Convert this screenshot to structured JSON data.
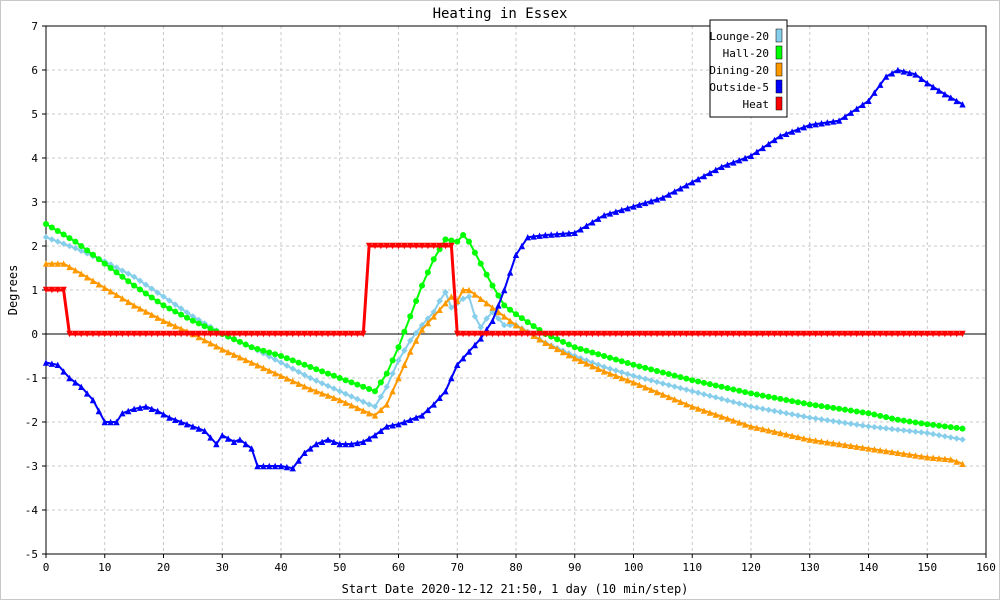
{
  "chart_data": {
    "type": "line",
    "title": "Heating in Essex",
    "xlabel": "Start Date 2020-12-12 21:50, 1 day (10 min/step)",
    "ylabel": "Degrees",
    "xlim": [
      0,
      160
    ],
    "ylim": [
      -5,
      7
    ],
    "x_ticks": [
      0,
      10,
      20,
      30,
      40,
      50,
      60,
      70,
      80,
      90,
      100,
      110,
      120,
      130,
      140,
      150,
      160
    ],
    "y_ticks": [
      -5,
      -4,
      -3,
      -2,
      -1,
      0,
      1,
      2,
      3,
      4,
      5,
      6,
      7
    ],
    "grid": true,
    "legend_position": "top-right",
    "series": [
      {
        "name": "Lounge-20",
        "color": "#87ceeb",
        "marker": "diamond",
        "points": [
          [
            0,
            2.2
          ],
          [
            5,
            1.95
          ],
          [
            10,
            1.65
          ],
          [
            15,
            1.3
          ],
          [
            20,
            0.85
          ],
          [
            25,
            0.4
          ],
          [
            30,
            0.0
          ],
          [
            35,
            -0.3
          ],
          [
            40,
            -0.65
          ],
          [
            45,
            -1.0
          ],
          [
            50,
            -1.3
          ],
          [
            55,
            -1.6
          ],
          [
            56,
            -1.65
          ],
          [
            58,
            -1.2
          ],
          [
            60,
            -0.6
          ],
          [
            62,
            -0.15
          ],
          [
            64,
            0.2
          ],
          [
            66,
            0.5
          ],
          [
            67,
            0.75
          ],
          [
            68,
            0.95
          ],
          [
            69,
            0.6
          ],
          [
            70,
            0.7
          ],
          [
            71,
            0.8
          ],
          [
            72,
            0.85
          ],
          [
            73,
            0.4
          ],
          [
            74,
            0.15
          ],
          [
            75,
            0.35
          ],
          [
            76,
            0.5
          ],
          [
            77,
            0.35
          ],
          [
            78,
            0.2
          ],
          [
            80,
            0.2
          ],
          [
            82,
            0.05
          ],
          [
            85,
            -0.2
          ],
          [
            90,
            -0.5
          ],
          [
            95,
            -0.75
          ],
          [
            100,
            -0.95
          ],
          [
            110,
            -1.3
          ],
          [
            120,
            -1.65
          ],
          [
            130,
            -1.9
          ],
          [
            140,
            -2.1
          ],
          [
            150,
            -2.25
          ],
          [
            156,
            -2.4
          ]
        ]
      },
      {
        "name": "Hall-20",
        "color": "#00ff00",
        "marker": "circle",
        "points": [
          [
            0,
            2.5
          ],
          [
            5,
            2.1
          ],
          [
            10,
            1.6
          ],
          [
            15,
            1.1
          ],
          [
            20,
            0.65
          ],
          [
            25,
            0.3
          ],
          [
            30,
            0.0
          ],
          [
            35,
            -0.3
          ],
          [
            40,
            -0.5
          ],
          [
            45,
            -0.75
          ],
          [
            50,
            -1.0
          ],
          [
            55,
            -1.25
          ],
          [
            56,
            -1.3
          ],
          [
            58,
            -0.9
          ],
          [
            60,
            -0.3
          ],
          [
            62,
            0.4
          ],
          [
            64,
            1.1
          ],
          [
            66,
            1.7
          ],
          [
            68,
            2.15
          ],
          [
            70,
            2.1
          ],
          [
            71,
            2.25
          ],
          [
            72,
            2.1
          ],
          [
            74,
            1.6
          ],
          [
            76,
            1.1
          ],
          [
            78,
            0.65
          ],
          [
            80,
            0.45
          ],
          [
            85,
            0.0
          ],
          [
            90,
            -0.3
          ],
          [
            95,
            -0.5
          ],
          [
            100,
            -0.7
          ],
          [
            110,
            -1.05
          ],
          [
            120,
            -1.35
          ],
          [
            130,
            -1.6
          ],
          [
            140,
            -1.8
          ],
          [
            145,
            -1.95
          ],
          [
            150,
            -2.05
          ],
          [
            156,
            -2.15
          ]
        ]
      },
      {
        "name": "Dining-20",
        "color": "#ff9900",
        "marker": "triangle",
        "points": [
          [
            0,
            1.6
          ],
          [
            3,
            1.6
          ],
          [
            5,
            1.45
          ],
          [
            10,
            1.05
          ],
          [
            15,
            0.65
          ],
          [
            20,
            0.3
          ],
          [
            25,
            0.0
          ],
          [
            30,
            -0.35
          ],
          [
            35,
            -0.65
          ],
          [
            40,
            -0.95
          ],
          [
            45,
            -1.25
          ],
          [
            50,
            -1.5
          ],
          [
            55,
            -1.8
          ],
          [
            56,
            -1.85
          ],
          [
            58,
            -1.6
          ],
          [
            60,
            -1.0
          ],
          [
            62,
            -0.4
          ],
          [
            64,
            0.1
          ],
          [
            66,
            0.4
          ],
          [
            68,
            0.7
          ],
          [
            69,
            0.85
          ],
          [
            70,
            0.75
          ],
          [
            71,
            1.0
          ],
          [
            72,
            1.0
          ],
          [
            74,
            0.8
          ],
          [
            76,
            0.6
          ],
          [
            78,
            0.4
          ],
          [
            80,
            0.2
          ],
          [
            85,
            -0.2
          ],
          [
            90,
            -0.55
          ],
          [
            95,
            -0.85
          ],
          [
            100,
            -1.1
          ],
          [
            110,
            -1.65
          ],
          [
            120,
            -2.1
          ],
          [
            130,
            -2.4
          ],
          [
            140,
            -2.6
          ],
          [
            150,
            -2.8
          ],
          [
            154,
            -2.85
          ],
          [
            156,
            -2.95
          ]
        ]
      },
      {
        "name": "Outside-5",
        "color": "#0000ff",
        "marker": "triangle",
        "points": [
          [
            0,
            -0.65
          ],
          [
            2,
            -0.7
          ],
          [
            4,
            -1.0
          ],
          [
            6,
            -1.2
          ],
          [
            8,
            -1.5
          ],
          [
            10,
            -2.0
          ],
          [
            12,
            -2.0
          ],
          [
            13,
            -1.8
          ],
          [
            15,
            -1.7
          ],
          [
            17,
            -1.65
          ],
          [
            19,
            -1.75
          ],
          [
            21,
            -1.9
          ],
          [
            23,
            -2.0
          ],
          [
            25,
            -2.1
          ],
          [
            27,
            -2.2
          ],
          [
            29,
            -2.5
          ],
          [
            30,
            -2.3
          ],
          [
            32,
            -2.45
          ],
          [
            33,
            -2.4
          ],
          [
            35,
            -2.6
          ],
          [
            36,
            -3.0
          ],
          [
            40,
            -3.0
          ],
          [
            42,
            -3.05
          ],
          [
            44,
            -2.7
          ],
          [
            46,
            -2.5
          ],
          [
            48,
            -2.4
          ],
          [
            50,
            -2.5
          ],
          [
            52,
            -2.5
          ],
          [
            54,
            -2.45
          ],
          [
            56,
            -2.3
          ],
          [
            58,
            -2.1
          ],
          [
            60,
            -2.05
          ],
          [
            62,
            -1.95
          ],
          [
            64,
            -1.85
          ],
          [
            66,
            -1.6
          ],
          [
            68,
            -1.3
          ],
          [
            70,
            -0.7
          ],
          [
            72,
            -0.4
          ],
          [
            74,
            -0.1
          ],
          [
            76,
            0.3
          ],
          [
            78,
            1.0
          ],
          [
            80,
            1.8
          ],
          [
            82,
            2.2
          ],
          [
            85,
            2.25
          ],
          [
            90,
            2.3
          ],
          [
            95,
            2.7
          ],
          [
            100,
            2.9
          ],
          [
            105,
            3.1
          ],
          [
            110,
            3.45
          ],
          [
            115,
            3.8
          ],
          [
            120,
            4.05
          ],
          [
            125,
            4.5
          ],
          [
            130,
            4.75
          ],
          [
            135,
            4.85
          ],
          [
            140,
            5.3
          ],
          [
            143,
            5.85
          ],
          [
            145,
            6.0
          ],
          [
            148,
            5.9
          ],
          [
            150,
            5.7
          ],
          [
            153,
            5.45
          ],
          [
            156,
            5.22
          ]
        ]
      },
      {
        "name": "Heat",
        "color": "#ff0000",
        "marker": "triangle-down",
        "points": [
          [
            0,
            1
          ],
          [
            3,
            1
          ],
          [
            4,
            0
          ],
          [
            54,
            0
          ],
          [
            55,
            2
          ],
          [
            69,
            2
          ],
          [
            70,
            0
          ],
          [
            156,
            0
          ]
        ]
      }
    ]
  }
}
